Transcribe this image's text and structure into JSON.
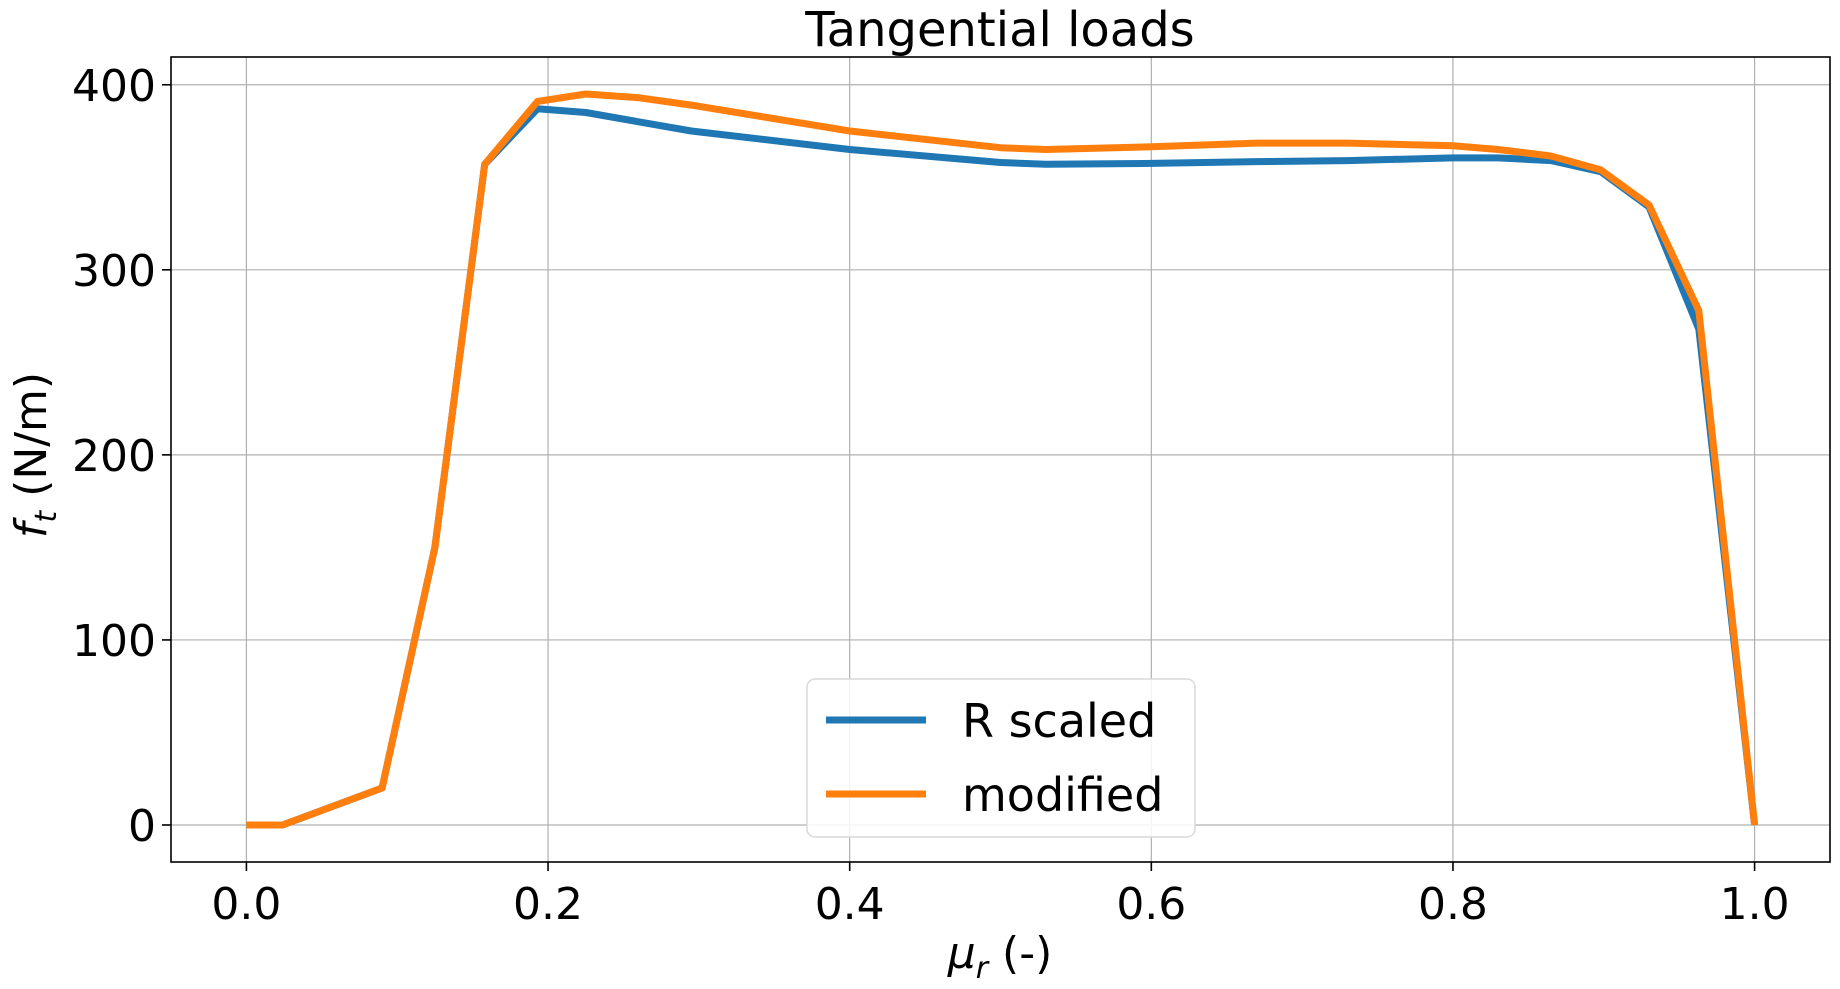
{
  "chart_data": {
    "type": "line",
    "title": "Tangential loads",
    "xlabel": {
      "main": "μ",
      "sub": "r",
      "unit": " (-)"
    },
    "ylabel": {
      "main": "f",
      "sub": "t",
      "unit": " (N/m)"
    },
    "xlim": [
      -0.05,
      1.05
    ],
    "ylim": [
      -20,
      415
    ],
    "xticks": [
      0.0,
      0.2,
      0.4,
      0.6,
      0.8,
      1.0
    ],
    "xtick_labels": [
      "0.0",
      "0.2",
      "0.4",
      "0.6",
      "0.8",
      "1.0"
    ],
    "yticks": [
      0,
      100,
      200,
      300,
      400
    ],
    "ytick_labels": [
      "0",
      "100",
      "200",
      "300",
      "400"
    ],
    "grid": true,
    "legend_position": "lower-center",
    "series": [
      {
        "name": "R scaled",
        "color": "#1f77b4",
        "x": [
          0.0,
          0.024,
          0.09,
          0.125,
          0.158,
          0.193,
          0.225,
          0.26,
          0.295,
          0.4,
          0.5,
          0.53,
          0.6,
          0.67,
          0.73,
          0.8,
          0.83,
          0.865,
          0.898,
          0.93,
          0.963,
          1.0
        ],
        "y": [
          0,
          0,
          20,
          150,
          357,
          387,
          385,
          380,
          375,
          365,
          358,
          357,
          357.5,
          358.5,
          359,
          360.5,
          360.5,
          359,
          353,
          334,
          268,
          0
        ]
      },
      {
        "name": "modified",
        "color": "#ff7f0e",
        "x": [
          0.0,
          0.024,
          0.09,
          0.125,
          0.158,
          0.193,
          0.225,
          0.26,
          0.295,
          0.4,
          0.5,
          0.53,
          0.6,
          0.67,
          0.73,
          0.8,
          0.83,
          0.865,
          0.898,
          0.93,
          0.963,
          1.0
        ],
        "y": [
          0,
          0,
          20,
          150,
          357,
          391,
          395,
          393,
          389,
          375,
          366,
          365,
          366.5,
          368.5,
          368.5,
          367,
          365,
          361.5,
          354,
          335,
          278,
          0
        ]
      }
    ]
  }
}
